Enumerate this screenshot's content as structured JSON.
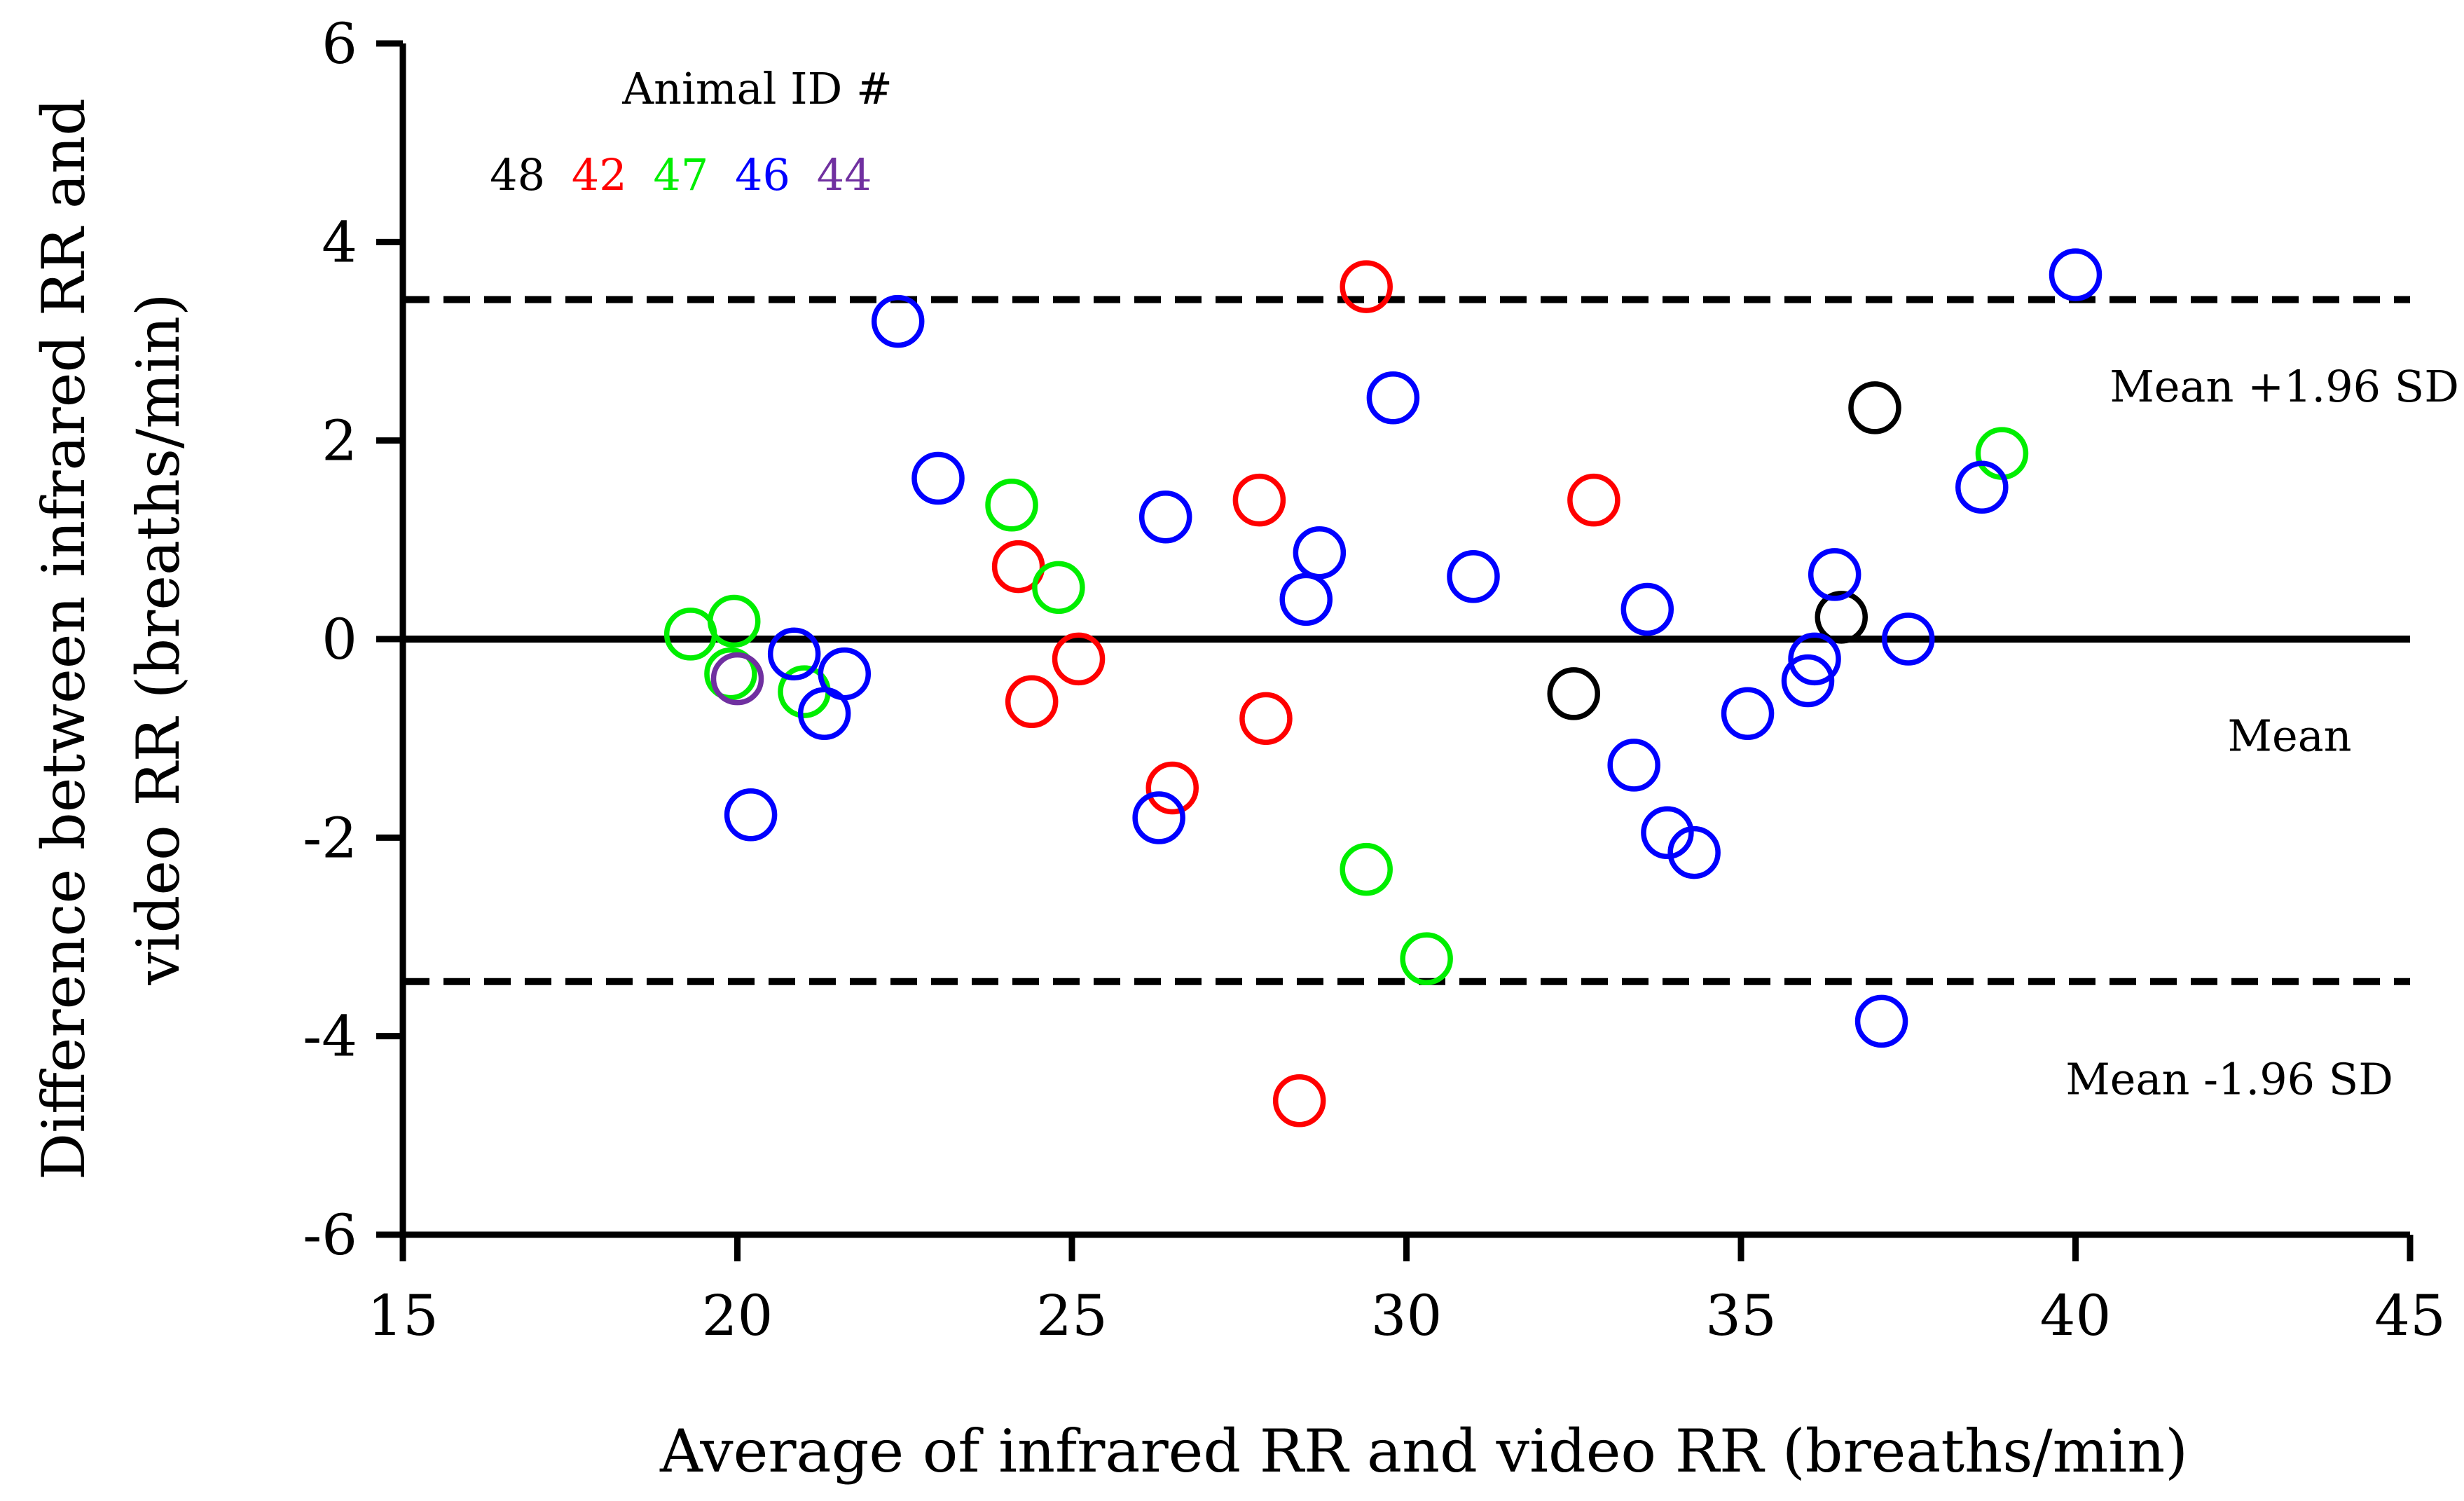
{
  "chart_data": {
    "type": "scatter",
    "title": "",
    "xlabel": "Average of infrared RR and video RR (breaths/min)",
    "ylabel_lines": [
      "Difference between infrared RR and",
      "video RR (breaths/min)"
    ],
    "xlim": [
      15,
      45
    ],
    "ylim": [
      -6,
      6
    ],
    "x_ticks": [
      15,
      20,
      25,
      30,
      35,
      40,
      45
    ],
    "y_ticks": [
      6,
      4,
      2,
      0,
      -2,
      -4,
      -6
    ],
    "grid": false,
    "legend": {
      "title": "Animal ID #",
      "placement": "top-left",
      "entries": [
        {
          "label": "48",
          "color": "#000000"
        },
        {
          "label": "42",
          "color": "#ff0000"
        },
        {
          "label": "47",
          "color": "#00ee00"
        },
        {
          "label": "46",
          "color": "#0000ff"
        },
        {
          "label": "44",
          "color": "#7030a0"
        }
      ]
    },
    "reference_lines": [
      {
        "name": "mean",
        "y": 0,
        "style": "solid",
        "label": "Mean"
      },
      {
        "name": "upper",
        "y": 3.42,
        "style": "dashed",
        "label": "Mean +1.96 SD"
      },
      {
        "name": "lower",
        "y": -3.45,
        "style": "dashed",
        "label": "Mean -1.96 SD"
      }
    ],
    "series": [
      {
        "name": "48",
        "color": "#000000",
        "points": [
          {
            "x": 37.0,
            "y": 2.33
          },
          {
            "x": 36.5,
            "y": 0.22
          },
          {
            "x": 32.5,
            "y": -0.55
          }
        ]
      },
      {
        "name": "42",
        "color": "#ff0000",
        "points": [
          {
            "x": 29.4,
            "y": 3.55
          },
          {
            "x": 27.8,
            "y": 1.4
          },
          {
            "x": 32.8,
            "y": 1.4
          },
          {
            "x": 24.2,
            "y": 0.73
          },
          {
            "x": 25.1,
            "y": -0.2
          },
          {
            "x": 24.4,
            "y": -0.63
          },
          {
            "x": 27.9,
            "y": -0.8
          },
          {
            "x": 26.5,
            "y": -1.5
          },
          {
            "x": 28.4,
            "y": -4.65
          }
        ]
      },
      {
        "name": "47",
        "color": "#00ee00",
        "points": [
          {
            "x": 38.9,
            "y": 1.87
          },
          {
            "x": 24.1,
            "y": 1.35
          },
          {
            "x": 24.8,
            "y": 0.52
          },
          {
            "x": 19.3,
            "y": 0.05
          },
          {
            "x": 19.95,
            "y": 0.18
          },
          {
            "x": 19.9,
            "y": -0.35
          },
          {
            "x": 21.0,
            "y": -0.53
          },
          {
            "x": 29.4,
            "y": -2.32
          },
          {
            "x": 30.3,
            "y": -3.22
          }
        ]
      },
      {
        "name": "46",
        "color": "#0000ff",
        "points": [
          {
            "x": 40.0,
            "y": 3.67
          },
          {
            "x": 22.4,
            "y": 3.2
          },
          {
            "x": 29.8,
            "y": 2.43
          },
          {
            "x": 23.0,
            "y": 1.62
          },
          {
            "x": 38.6,
            "y": 1.53
          },
          {
            "x": 26.4,
            "y": 1.23
          },
          {
            "x": 28.7,
            "y": 0.87
          },
          {
            "x": 31.0,
            "y": 0.63
          },
          {
            "x": 36.4,
            "y": 0.65
          },
          {
            "x": 28.5,
            "y": 0.4
          },
          {
            "x": 33.6,
            "y": 0.3
          },
          {
            "x": 37.5,
            "y": 0.0
          },
          {
            "x": 20.85,
            "y": -0.15
          },
          {
            "x": 21.6,
            "y": -0.35
          },
          {
            "x": 36.1,
            "y": -0.2
          },
          {
            "x": 36.0,
            "y": -0.42
          },
          {
            "x": 35.1,
            "y": -0.75
          },
          {
            "x": 21.3,
            "y": -0.75
          },
          {
            "x": 33.4,
            "y": -1.27
          },
          {
            "x": 20.2,
            "y": -1.77
          },
          {
            "x": 26.3,
            "y": -1.8
          },
          {
            "x": 33.9,
            "y": -1.95
          },
          {
            "x": 34.3,
            "y": -2.15
          },
          {
            "x": 37.1,
            "y": -3.85
          }
        ]
      },
      {
        "name": "44",
        "color": "#7030a0",
        "points": [
          {
            "x": 20.0,
            "y": -0.4
          }
        ]
      }
    ]
  }
}
